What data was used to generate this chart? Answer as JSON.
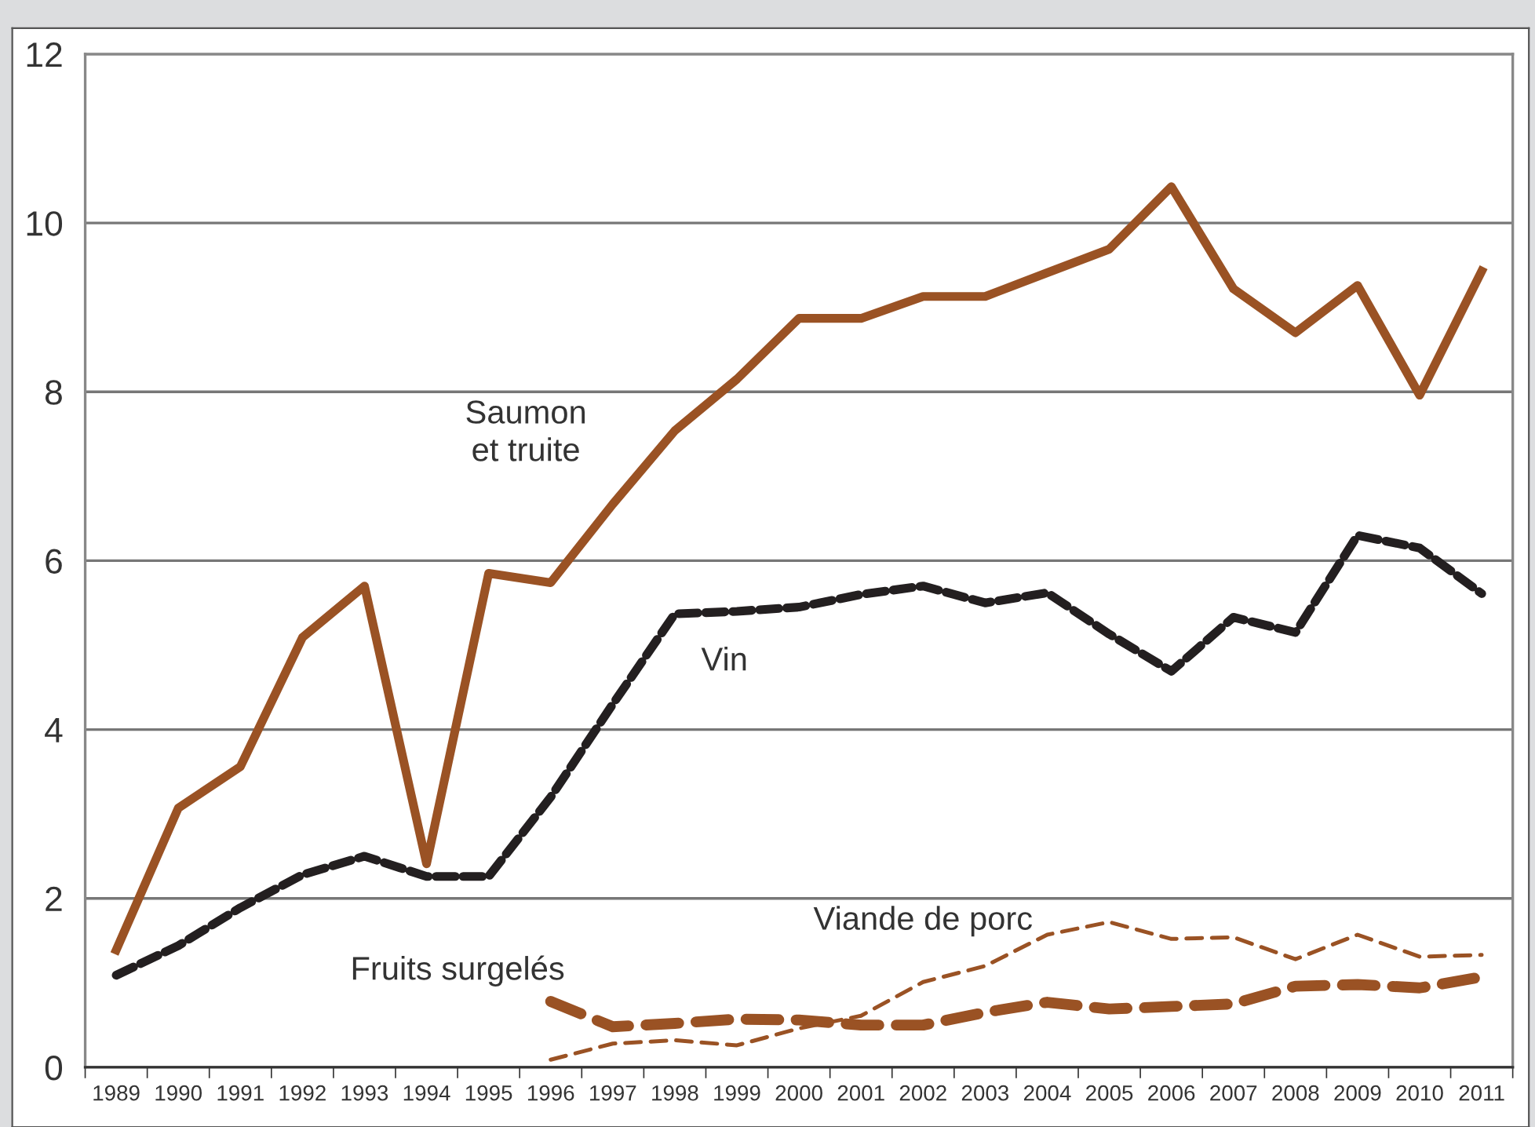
{
  "chart_data": {
    "type": "line",
    "categories": [
      "1989",
      "1990",
      "1991",
      "1992",
      "1993",
      "1994",
      "1995",
      "1996",
      "1997",
      "1998",
      "1999",
      "2000",
      "2001",
      "2002",
      "2003",
      "2004",
      "2005",
      "2006",
      "2007",
      "2008",
      "2009",
      "2010",
      "2011"
    ],
    "series": [
      {
        "name": "Saumon\net truite",
        "color": "#9a5224",
        "line_style": "solid",
        "values": [
          1.39,
          3.07,
          3.56,
          5.09,
          5.7,
          2.41,
          5.85,
          5.74,
          6.67,
          7.54,
          8.15,
          8.87,
          8.87,
          9.13,
          9.13,
          9.41,
          9.69,
          10.43,
          9.22,
          8.7,
          9.26,
          7.96,
          9.43
        ]
      },
      {
        "name": "Vin",
        "color": "#231f20",
        "line_style": "dashed",
        "values": [
          1.09,
          1.44,
          1.89,
          2.28,
          2.5,
          2.26,
          2.26,
          3.2,
          4.3,
          5.37,
          5.4,
          5.45,
          5.6,
          5.7,
          5.5,
          5.62,
          5.13,
          4.69,
          5.33,
          5.15,
          6.3,
          6.15,
          5.61
        ]
      },
      {
        "name": "Fruits surgelés",
        "color": "#9a5224",
        "line_style": "dashed",
        "values": [
          null,
          null,
          null,
          null,
          null,
          null,
          null,
          0.78,
          0.48,
          0.52,
          0.57,
          0.56,
          0.5,
          0.5,
          0.65,
          0.77,
          0.69,
          0.72,
          0.75,
          0.96,
          0.98,
          0.94,
          1.07
        ]
      },
      {
        "name": "Viande de porc",
        "color": "#9a5224",
        "line_style": "dashed",
        "values": [
          null,
          null,
          null,
          null,
          null,
          null,
          null,
          0.09,
          0.28,
          0.32,
          0.26,
          0.46,
          0.61,
          1.01,
          1.2,
          1.57,
          1.72,
          1.52,
          1.54,
          1.28,
          1.57,
          1.31,
          1.33
        ]
      }
    ],
    "ylim": [
      0,
      12
    ],
    "yticks": [
      0,
      2,
      4,
      6,
      8,
      10,
      12
    ],
    "grid": "y",
    "legend": false
  }
}
